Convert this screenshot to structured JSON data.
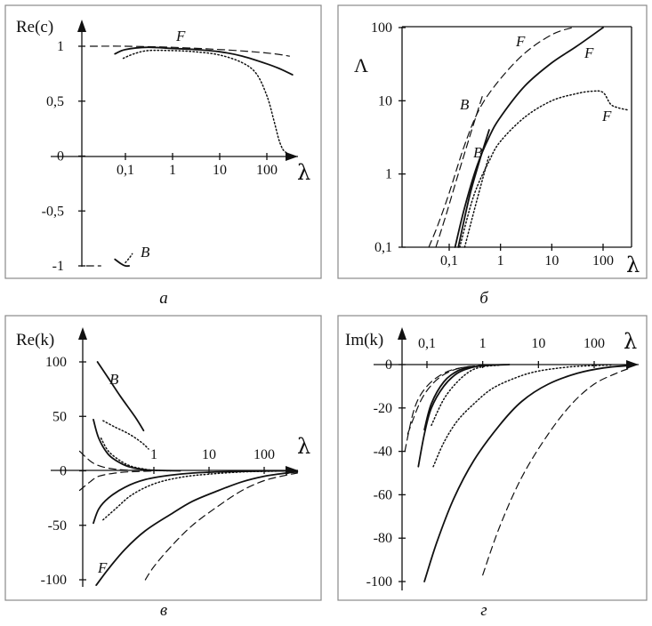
{
  "chart_data": [
    {
      "panel": "a",
      "type": "line",
      "caption": "а",
      "ylabel": "Re(c)",
      "xlabel": "λ",
      "xscale": "log",
      "xticks": [
        "0,1",
        "1",
        "10",
        "100"
      ],
      "yticks": [
        "1",
        "0,5",
        "0",
        "-0,5",
        "-1"
      ],
      "xlim": [
        0.015,
        450
      ],
      "ylim": [
        -1.1,
        1.2
      ],
      "annotations": [
        "F",
        "B"
      ],
      "series": [
        {
          "style": "dashed",
          "x": [
            0.018,
            0.1,
            1,
            10,
            50,
            150,
            300
          ],
          "y": [
            1.0,
            1.0,
            0.99,
            0.97,
            0.95,
            0.93,
            0.91
          ]
        },
        {
          "style": "solid",
          "x": [
            0.06,
            0.1,
            0.3,
            1,
            3,
            10,
            30,
            100,
            200,
            350
          ],
          "y": [
            0.93,
            0.97,
            0.99,
            0.98,
            0.97,
            0.95,
            0.91,
            0.84,
            0.79,
            0.74
          ]
        },
        {
          "style": "dotted",
          "x": [
            0.09,
            0.15,
            0.3,
            1,
            3,
            10,
            30,
            60,
            100,
            140,
            180,
            220,
            280
          ],
          "y": [
            0.89,
            0.93,
            0.96,
            0.96,
            0.95,
            0.92,
            0.85,
            0.75,
            0.55,
            0.33,
            0.15,
            0.06,
            0.02
          ]
        },
        {
          "style": "dashed",
          "x": [
            0.015,
            0.03
          ],
          "y": [
            -1.0,
            -1.0
          ]
        },
        {
          "style": "solid",
          "x": [
            0.06,
            0.08,
            0.1,
            0.12
          ],
          "y": [
            -0.94,
            -0.98,
            -1.0,
            -1.0
          ]
        },
        {
          "style": "dotted",
          "x": [
            0.1,
            0.12,
            0.14
          ],
          "y": [
            -0.97,
            -0.93,
            -0.89
          ]
        }
      ]
    },
    {
      "panel": "б",
      "type": "line",
      "caption": "б",
      "ylabel": "Λ",
      "xlabel": "λ",
      "xscale": "log",
      "yscale": "log",
      "xticks": [
        "0,1",
        "1",
        "10",
        "100"
      ],
      "yticks": [
        "100",
        "10",
        "1",
        "0,1"
      ],
      "xlim": [
        0.011,
        350
      ],
      "ylim": [
        0.1,
        100
      ],
      "annotations": [
        "F",
        "F",
        "F",
        "B",
        "B"
      ],
      "series": [
        {
          "style": "dashed",
          "x": [
            0.04,
            0.06,
            0.1,
            0.2,
            0.4,
            1,
            3,
            10,
            25
          ],
          "y": [
            0.1,
            0.2,
            0.55,
            2.5,
            8,
            20,
            45,
            80,
            100
          ]
        },
        {
          "style": "dashed",
          "x": [
            0.055,
            0.09,
            0.15,
            0.25,
            0.45
          ],
          "y": [
            0.1,
            0.3,
            1.0,
            3.2,
            12
          ]
        },
        {
          "style": "solid",
          "x": [
            0.13,
            0.2,
            0.35,
            0.6,
            1,
            3,
            10,
            30,
            100
          ],
          "y": [
            0.1,
            0.35,
            1.3,
            3.2,
            6,
            16,
            33,
            55,
            100
          ]
        },
        {
          "style": "solid",
          "x": [
            0.15,
            0.25,
            0.4,
            0.6
          ],
          "y": [
            0.1,
            0.5,
            1.6,
            4
          ]
        },
        {
          "style": "dotted",
          "x": [
            0.16,
            0.3,
            0.6,
            1,
            3,
            10,
            30,
            60,
            100,
            140,
            200,
            300
          ],
          "y": [
            0.1,
            0.5,
            1.5,
            2.8,
            6,
            10,
            12.5,
            13.5,
            13,
            9,
            8,
            7.5
          ]
        },
        {
          "style": "dotted",
          "x": [
            0.2,
            0.35,
            0.6
          ],
          "y": [
            0.1,
            0.45,
            1.8
          ]
        }
      ]
    },
    {
      "panel": "в",
      "type": "line",
      "caption": "в",
      "ylabel": "Re(k)",
      "xlabel": "λ",
      "xscale": "log",
      "xticks": [
        "1",
        "10",
        "100"
      ],
      "yticks": [
        "100",
        "50",
        "0",
        "-50",
        "-100"
      ],
      "xlim": [
        0.03,
        400
      ],
      "ylim": [
        -105,
        118
      ],
      "annotations": [
        "B",
        "F"
      ],
      "series": [
        {
          "style": "solid",
          "x": [
            0.095,
            0.15,
            0.25,
            0.45,
            0.65
          ],
          "y": [
            100,
            85,
            68,
            50,
            37
          ]
        },
        {
          "style": "dotted",
          "x": [
            0.12,
            0.2,
            0.35,
            0.6,
            0.8
          ],
          "y": [
            46,
            40,
            34,
            26,
            20
          ]
        },
        {
          "style": "solid",
          "x": [
            0.08,
            0.1,
            0.15,
            0.25,
            0.4,
            0.7,
            1,
            3
          ],
          "y": [
            47,
            30,
            15,
            7,
            3,
            1,
            0.5,
            0
          ]
        },
        {
          "style": "dotted",
          "x": [
            0.11,
            0.15,
            0.25,
            0.4,
            0.7,
            1,
            2
          ],
          "y": [
            30,
            18,
            9,
            4,
            1.5,
            0.5,
            0
          ]
        },
        {
          "style": "dashed",
          "x": [
            0.045,
            0.06,
            0.08,
            0.12,
            0.2,
            0.4,
            1
          ],
          "y": [
            18,
            12,
            7,
            3.5,
            1.5,
            0.5,
            0
          ]
        },
        {
          "style": "dashed",
          "x": [
            0.045,
            0.07,
            0.1,
            0.2,
            0.4,
            1
          ],
          "y": [
            -18,
            -10,
            -5,
            -2,
            -0.8,
            -0.2
          ]
        },
        {
          "style": "solid",
          "x": [
            0.08,
            0.1,
            0.15,
            0.3,
            0.7,
            2,
            5,
            20,
            100,
            400
          ],
          "y": [
            -48,
            -35,
            -25,
            -15,
            -8,
            -4,
            -2,
            -0.8,
            -0.2,
            0
          ]
        },
        {
          "style": "dotted",
          "x": [
            0.12,
            0.2,
            0.4,
            1,
            3,
            10,
            40,
            150,
            400
          ],
          "y": [
            -45,
            -35,
            -22,
            -12,
            -6,
            -3,
            -1,
            -0.3,
            0
          ]
        },
        {
          "style": "solid",
          "x": [
            0.09,
            0.15,
            0.3,
            0.7,
            2,
            5,
            15,
            40,
            100,
            250,
            400
          ],
          "y": [
            -105,
            -90,
            -72,
            -55,
            -40,
            -28,
            -18,
            -10,
            -5,
            -2,
            -1
          ]
        },
        {
          "style": "dashed",
          "x": [
            0.7,
            1,
            2,
            5,
            15,
            40,
            100,
            250,
            400
          ],
          "y": [
            -100,
            -88,
            -70,
            -50,
            -32,
            -18,
            -9,
            -4,
            -2
          ]
        }
      ]
    },
    {
      "panel": "г",
      "type": "line",
      "caption": "г",
      "ylabel": "Im(k)",
      "xlabel": "λ",
      "xscale": "log",
      "xticks": [
        "0,1",
        "1",
        "10",
        "100"
      ],
      "yticks": [
        "0",
        "-20",
        "-40",
        "-60",
        "-80",
        "-100"
      ],
      "xlim": [
        0.04,
        450
      ],
      "ylim": [
        -102,
        8
      ],
      "annotations": [],
      "series": [
        {
          "style": "dashed",
          "x": [
            0.04,
            0.06,
            0.1,
            0.2,
            0.4,
            1
          ],
          "y": [
            -40,
            -20,
            -10,
            -4,
            -1.5,
            -0.3
          ]
        },
        {
          "style": "dashed",
          "x": [
            0.045,
            0.08,
            0.15,
            0.3,
            0.6
          ],
          "y": [
            -32,
            -16,
            -7,
            -2.5,
            -0.8
          ]
        },
        {
          "style": "solid",
          "x": [
            0.07,
            0.09,
            0.12,
            0.2,
            0.35,
            0.6,
            1,
            3
          ],
          "y": [
            -47,
            -32,
            -20,
            -10,
            -4,
            -1.5,
            -0.5,
            0
          ]
        },
        {
          "style": "solid",
          "x": [
            0.09,
            0.12,
            0.2,
            0.35,
            0.6
          ],
          "y": [
            -30,
            -18,
            -8,
            -3,
            -1
          ]
        },
        {
          "style": "dotted",
          "x": [
            0.12,
            0.2,
            0.35,
            0.6,
            1,
            2
          ],
          "y": [
            -28,
            -16,
            -8,
            -3,
            -1,
            -0.3
          ]
        },
        {
          "style": "dotted",
          "x": [
            0.13,
            0.2,
            0.35,
            0.7,
            1.5,
            4,
            10,
            40,
            200
          ],
          "y": [
            -47,
            -36,
            -26,
            -18,
            -11,
            -6,
            -3,
            -1,
            -0.2
          ]
        },
        {
          "style": "solid",
          "x": [
            0.09,
            0.15,
            0.3,
            0.7,
            2,
            5,
            15,
            50,
            150,
            400
          ],
          "y": [
            -100,
            -82,
            -62,
            -44,
            -28,
            -17,
            -9,
            -4,
            -1.5,
            -0.5
          ]
        },
        {
          "style": "dashed",
          "x": [
            1,
            2,
            5,
            15,
            40,
            100,
            250,
            400
          ],
          "y": [
            -97,
            -75,
            -52,
            -32,
            -18,
            -9,
            -4,
            -2
          ]
        }
      ]
    }
  ]
}
